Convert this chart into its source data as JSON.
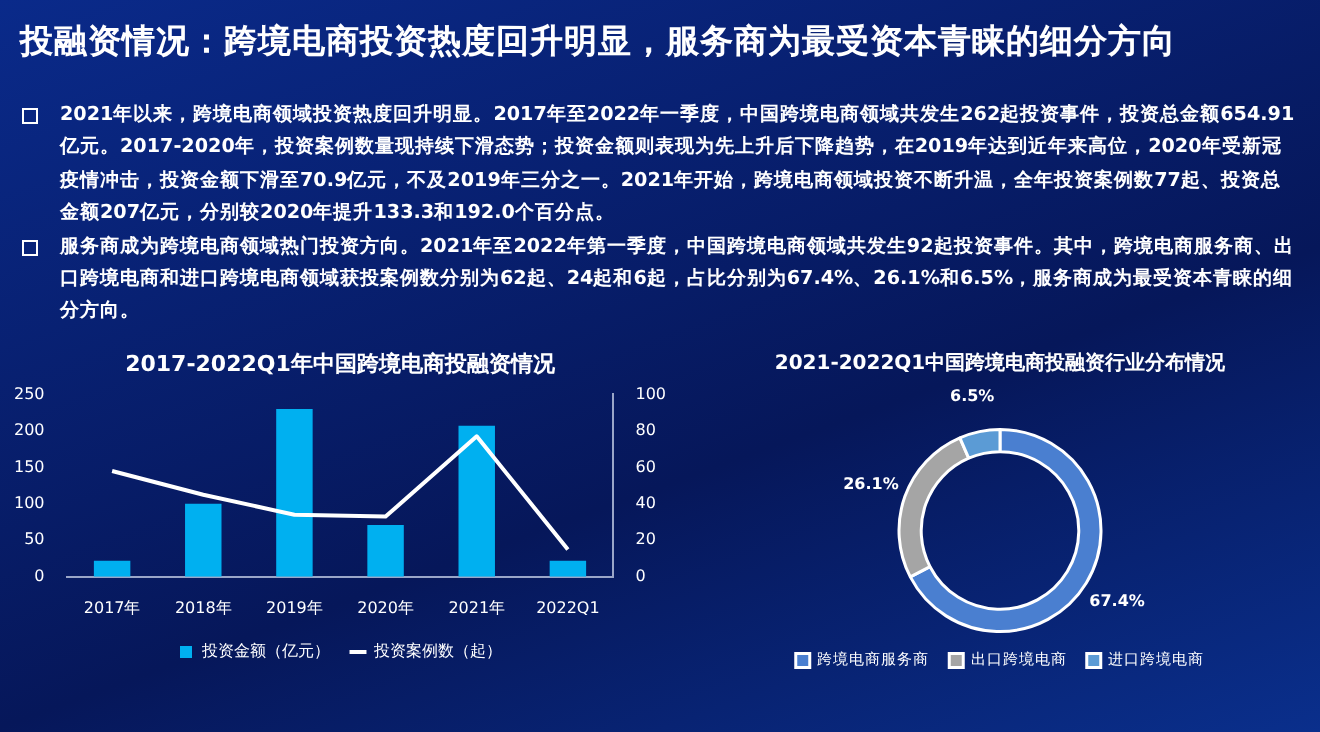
{
  "chart_data": [
    {
      "type": "other",
      "title": "投融资情况：跨境电商投资热度回升明显，服务商为最受资本青睐的细分方向",
      "annotations": [
        "2021年以来，跨境电商领域投资热度回升明显。2017年至2022年一季度，中国跨境电商领域共发生262起投资事件，投资总金额654.91亿元。2017-2020年，投资案例数量现持续下滑态势；投资金额则表现为先上升后下降趋势，在2019年达到近年来高位，2020年受新冠疫情冲击，投资金额下滑至70.9亿元，不及2019年三分之一。2021年开始，跨境电商领域投资不断升温，全年投资案例数77起、投资总金额207亿元，分别较2020年提升133.3和192.0个百分点。",
        "服务商成为跨境电商领域热门投资方向。2021年至2022年第一季度，中国跨境电商领域共发生92起投资事件。其中，跨境电商服务商、出口跨境电商和进口跨境电商领域获投案例数分别为62起、24起和6起，占比分别为67.4%、26.1%和6.5%，服务商成为最受资本青睐的细分方向。"
      ]
    },
    {
      "type": "bar",
      "title": "2017-2022Q1年中国跨境电商投融资情况",
      "categories": [
        "2017年",
        "2018年",
        "2019年",
        "2020年",
        "2021年",
        "2022Q1"
      ],
      "series": [
        {
          "name": "投资金额（亿元）",
          "type": "bar",
          "color": "#00b0f0",
          "values": [
            22,
            100,
            230,
            70.9,
            207,
            22
          ]
        },
        {
          "name": "投资案例数（起）",
          "type": "line",
          "axis": "y2",
          "color": "#ffffff",
          "values": [
            58,
            45,
            34,
            33,
            77,
            15
          ]
        }
      ],
      "ylim": [
        0,
        250
      ],
      "yticks": [
        0,
        50,
        100,
        150,
        200,
        250
      ],
      "y2lim": [
        0,
        100
      ],
      "y2ticks": [
        0,
        20,
        40,
        60,
        80,
        100
      ],
      "grid": false,
      "legend": "bottom",
      "marker": "none"
    },
    {
      "type": "donut",
      "title": "2021-2022Q1中国跨境电商投融资行业分布情况",
      "categories": [
        "跨境电商服务商",
        "出口跨境电商",
        "进口跨境电商"
      ],
      "values": [
        67.4,
        26.1,
        6.5
      ],
      "colors": [
        "#4a7fd0",
        "#a5a5a5",
        "#5b9bd5"
      ],
      "value_labels": [
        "67.4%",
        "26.1%",
        "6.5%"
      ],
      "legend": "bottom"
    }
  ]
}
